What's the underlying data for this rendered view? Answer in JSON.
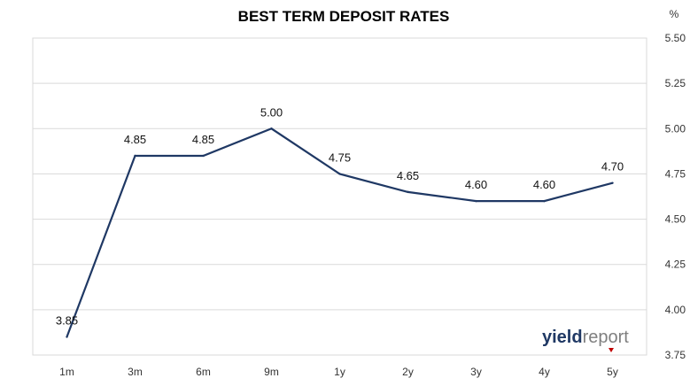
{
  "chart_data": {
    "type": "line",
    "title": "BEST TERM DEPOSIT RATES",
    "y_unit": "%",
    "categories": [
      "1m",
      "3m",
      "6m",
      "9m",
      "1y",
      "2y",
      "3y",
      "4y",
      "5y"
    ],
    "values": [
      3.85,
      4.85,
      4.85,
      5.0,
      4.75,
      4.65,
      4.6,
      4.6,
      4.7
    ],
    "data_labels": [
      "3.85",
      "4.85",
      "4.85",
      "5.00",
      "4.75",
      "4.65",
      "4.60",
      "4.60",
      "4.70"
    ],
    "y_ticks": [
      "3.75",
      "4.00",
      "4.25",
      "4.50",
      "4.75",
      "5.00",
      "5.25",
      "5.50"
    ],
    "ylim": [
      3.75,
      5.5
    ],
    "y_axis_position": "right",
    "grid": true,
    "line_color": "#1f3864",
    "grid_color": "#d9d9d9"
  },
  "logo": {
    "part1": "yield",
    "part2": "report",
    "color1": "#1f3864",
    "color2": "#7f7f7f",
    "accent_color": "#c00000"
  }
}
